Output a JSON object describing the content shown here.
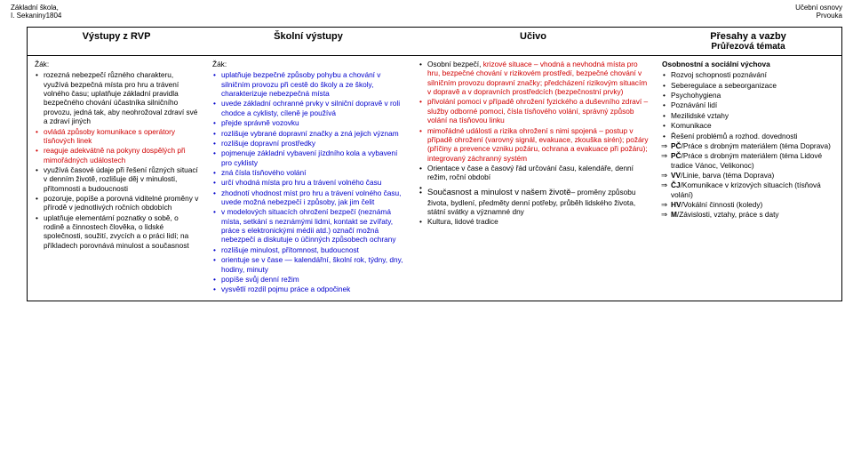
{
  "header": {
    "left_line1": "Základní škola,",
    "left_line2": "I. Sekaniny1804",
    "right_line1": "Učební osnovy",
    "right_line2": "Prvouka"
  },
  "columns": {
    "h1": "Výstupy z RVP",
    "h2": "Školní výstupy",
    "h3": "Učivo",
    "h4_a": "Přesahy a vazby",
    "h4_b": "Průřezová témata"
  },
  "col1": {
    "lead": "Žák:",
    "items": [
      "rozezná nebezpečí různého charakteru, využívá bezpečná místa pro hru a trávení volného času; uplatňuje základní pravidla bezpečného chování účastníka silničního provozu, jedná tak, aby neohrožoval zdraví své a zdraví jiných",
      "ovládá způsoby komunikace s operátory tísňových linek",
      "reaguje adekvátně na pokyny dospělých při mimořádných událostech",
      "využívá časové údaje při řešení různých situací v denním životě, rozlišuje děj v minulosti, přítomnosti a budoucnosti",
      "pozoruje, popíše a porovná viditelné proměny v přírodě v jednotlivých ročních obdobích",
      "uplatňuje elementární poznatky o sobě, o rodině a činnostech člověka, o lidské společnosti, soužití, zvycích a o práci lidí; na příkladech porovnává minulost a současnost"
    ],
    "red_idx": [
      1,
      2
    ]
  },
  "col2": {
    "lead": "Žák:",
    "items": [
      "uplatňuje bezpečné způsoby pohybu a chování v silničním provozu při cestě do školy a ze školy, charakterizuje nebezpečná místa",
      "uvede základní ochranné prvky v silniční dopravě v roli chodce a cyklisty, cíleně je používá",
      "přejde správně vozovku",
      "rozlišuje vybrané dopravní značky a zná jejich význam",
      "rozlišuje dopravní prostředky",
      "pojmenuje základní vybavení jízdního kola a vybavení pro cyklisty",
      "zná čísla tísňového volání",
      "určí vhodná místa pro hru a trávení volného času",
      "zhodnotí vhodnost míst pro hru a trávení volného času, uvede možná nebezpečí i způsoby, jak jim čelit",
      "v modelových situacích ohrožení bezpečí (neznámá místa, setkání s neznámými lidmi, kontakt se zvířaty, práce s elektronickými médii atd.) označí možná nebezpečí a diskutuje o účinných způsobech ochrany",
      "rozlišuje minulost, přítomnost, budoucnost",
      "orientuje se v čase — kalendářní, školní rok, týdny, dny, hodiny, minuty",
      "popíše svůj denní režim",
      "vysvětlí rozdíl pojmu práce a odpočinek"
    ]
  },
  "col3": {
    "items": [
      {
        "prefix": "Osobní bezpečí",
        "prefix_sep": ", ",
        "red": "krizové situace – vhodná a nevhodná místa pro hru, bezpečné chování v rizikovém prostředí, bezpečné chování v silničním provozu   dopravní značky; předcházení rizikovým situacím v dopravě a v dopravních prostředcích (bezpečnostní prvky)"
      },
      {
        "red": "přivolání pomoci v případě ohrožení fyzického a duševního zdraví – služby odborné pomoci, čísla tísňového volání, správný způsob volání na tísňovou linku"
      },
      {
        "red": "mimořádné události a rizika ohrožení s nimi spojená – postup v případě ohrožení (varovný signál, evakuace, zkouška sirén); požáry (příčiny a prevence vzniku požáru, ochrana a evakuace při požáru); integrovaný záchranný systém"
      },
      {
        "plain": "Orientace v čase a časový řád  určování času, kalendáře, denní režim, roční období"
      },
      {
        "blank": true
      },
      {
        "big": "Současnost a minulost v našem životě",
        "big_sep": "– ",
        "rest": "proměny způsobu života, bydlení, předměty denní potřeby, průběh lidského života, státní svátky a významné dny"
      },
      {
        "plain": "Kultura, lidové tradice"
      }
    ]
  },
  "col4": {
    "heading": "Osobnostní a sociální výchova",
    "items": [
      "Rozvoj schopnosti poznávání",
      "Seberegulace a sebeorganizace",
      "Psychohygiena",
      "Poznávání lidí",
      "Mezilidské vztahy",
      "Komunikace",
      "Řešení problémů a rozhod. dovednosti"
    ],
    "arrows": [
      {
        "b": "PČ",
        "rest": "/Práce s drobným materiálem (téma Doprava)"
      },
      {
        "b": "PČ",
        "rest": "/Práce s drobným materiálem (téma Lidové tradice Vánoc, Velikonoc)"
      },
      {
        "b": "VV",
        "rest": "/Linie, barva (téma Doprava)"
      },
      {
        "b": "ČJ",
        "rest": "/Komunikace v krizových situacích (tísňová  volání)"
      },
      {
        "b": "HV",
        "rest": "/Vokální činnosti (koledy)"
      },
      {
        "b": "M",
        "rest": "/Závislosti, vztahy, práce s daty"
      }
    ]
  }
}
